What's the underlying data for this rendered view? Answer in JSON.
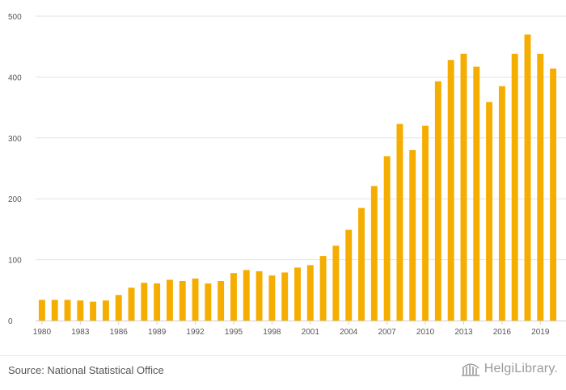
{
  "chart_data": {
    "type": "bar",
    "title": "",
    "xlabel": "",
    "ylabel": "",
    "ylim": [
      0,
      500
    ],
    "yticks": [
      0,
      100,
      200,
      300,
      400,
      500
    ],
    "xtick_labels": [
      "1980",
      "1983",
      "1986",
      "1989",
      "1992",
      "1995",
      "1998",
      "2001",
      "2004",
      "2007",
      "2010",
      "2013",
      "2016",
      "2019"
    ],
    "categories": [
      "1980",
      "1981",
      "1982",
      "1983",
      "1984",
      "1985",
      "1986",
      "1987",
      "1988",
      "1989",
      "1990",
      "1991",
      "1992",
      "1993",
      "1994",
      "1995",
      "1996",
      "1997",
      "1998",
      "1999",
      "2000",
      "2001",
      "2002",
      "2003",
      "2004",
      "2005",
      "2006",
      "2007",
      "2008",
      "2009",
      "2010",
      "2011",
      "2012",
      "2013",
      "2014",
      "2015",
      "2016",
      "2017",
      "2018",
      "2019",
      "2020"
    ],
    "values": [
      34,
      34,
      34,
      33,
      31,
      33,
      42,
      54,
      62,
      61,
      67,
      65,
      69,
      61,
      65,
      78,
      83,
      81,
      74,
      79,
      87,
      91,
      106,
      123,
      149,
      185,
      221,
      270,
      323,
      280,
      320,
      393,
      428,
      438,
      417,
      359,
      385,
      438,
      470,
      438,
      414
    ],
    "bar_color": "#f5ad00",
    "grid": true
  },
  "footer": {
    "source": "Source: National Statistical Office",
    "brand": "HelgiLibrary."
  }
}
